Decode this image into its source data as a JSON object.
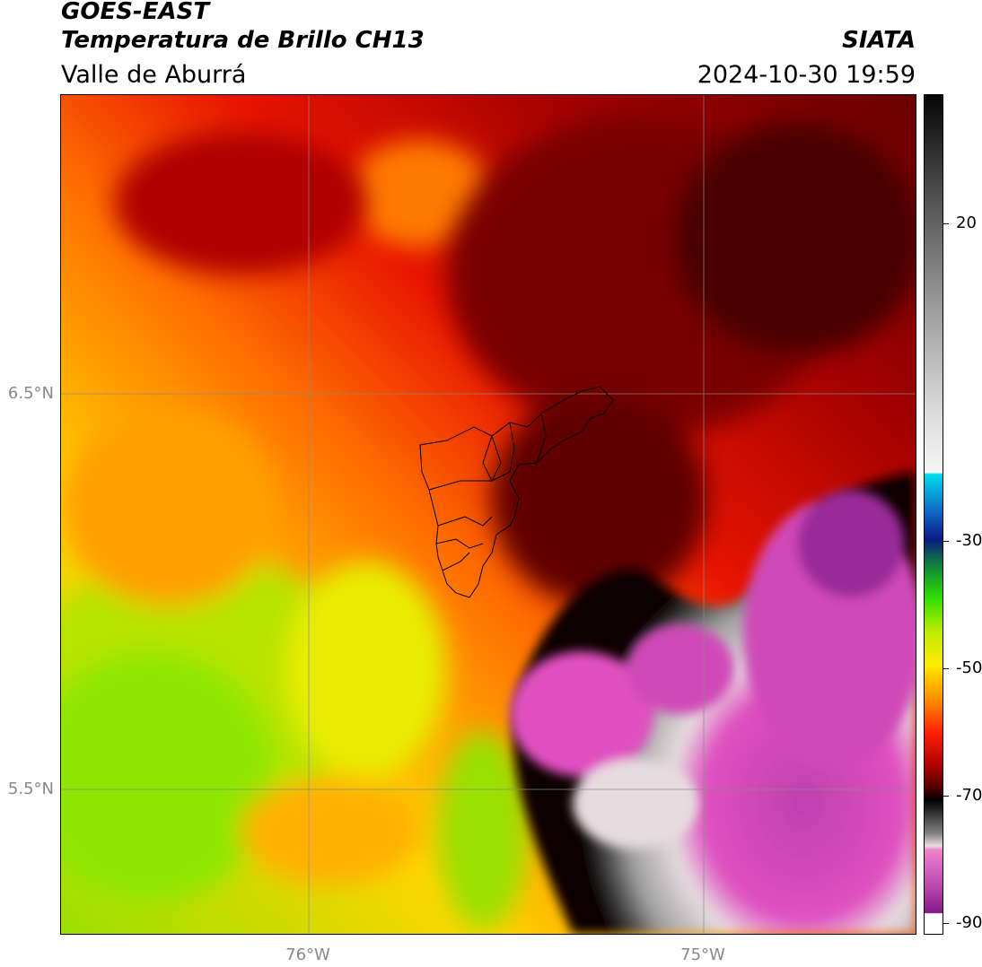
{
  "header": {
    "satellite": "GOES-EAST",
    "product": "Temperatura de Brillo CH13",
    "region": "Valle de Aburrá",
    "org": "SIATA",
    "datetime": "2024-10-30 19:59"
  },
  "map": {
    "lat_ticks": [
      "6.5°N",
      "5.5°N"
    ],
    "lon_ticks": [
      "76°W",
      "75°W"
    ],
    "gridlines": true,
    "overlay": "Valle de Aburrá municipal boundaries"
  },
  "colorbar": {
    "tick_labels": [
      "20",
      "-30",
      "-50",
      "-70",
      "-90"
    ],
    "colors": {
      "warm_green": "#8ee600",
      "yellow": "#f5f000",
      "orange": "#ff9600",
      "red": "#e81400",
      "dark_red": "#5a0000",
      "black": "#0a0505",
      "grey": "#8a8a8a",
      "light": "#e6dce0",
      "magenta": "#e050c0",
      "purple": "#8a2090",
      "cyan": "#00dcec",
      "navy": "#0a1a80"
    }
  }
}
